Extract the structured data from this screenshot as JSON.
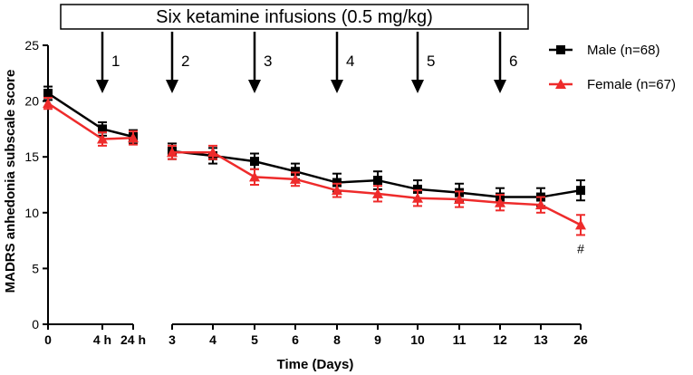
{
  "chart_data": {
    "type": "line",
    "title": "Six ketamine infusions (0.5 mg/kg)",
    "xlabel": "Time (Days)",
    "ylabel": "MADRS anhedonia subscale score",
    "ylim": [
      0,
      25
    ],
    "yticks": [
      0,
      5,
      10,
      15,
      20,
      25
    ],
    "x_tick_labels": [
      "0",
      "4 h",
      "24 h",
      "3",
      "4",
      "5",
      "6",
      "8",
      "9",
      "10",
      "11",
      "12",
      "13",
      "26"
    ],
    "infusions": [
      {
        "label": "1",
        "tick_index": 1
      },
      {
        "label": "2",
        "tick_index": 3
      },
      {
        "label": "3",
        "tick_index": 5
      },
      {
        "label": "4",
        "tick_index": 7
      },
      {
        "label": "5",
        "tick_index": 9
      },
      {
        "label": "6",
        "tick_index": 11
      }
    ],
    "series": [
      {
        "name": "Male (n=68)",
        "color": "#000000",
        "marker": "square",
        "values": [
          20.7,
          17.5,
          16.8,
          15.5,
          15.1,
          14.6,
          13.7,
          12.7,
          12.9,
          12.1,
          11.8,
          11.4,
          11.4,
          12.0
        ],
        "errors": [
          0.6,
          0.6,
          0.6,
          0.7,
          0.7,
          0.7,
          0.7,
          0.8,
          0.8,
          0.8,
          0.8,
          0.8,
          0.8,
          0.9
        ]
      },
      {
        "name": "Female (n=67)",
        "color": "#ee2b2b",
        "marker": "triangle",
        "values": [
          19.8,
          16.6,
          16.7,
          15.4,
          15.4,
          13.2,
          13.0,
          12.0,
          11.7,
          11.3,
          11.2,
          10.9,
          10.7,
          8.9
        ],
        "errors": [
          0.5,
          0.6,
          0.6,
          0.6,
          0.6,
          0.7,
          0.6,
          0.6,
          0.7,
          0.7,
          0.7,
          0.7,
          0.7,
          0.9
        ]
      }
    ],
    "annotations": [
      {
        "text": "#",
        "series": 1,
        "point_index": 13
      }
    ],
    "legend_position": "top-right",
    "grid": false
  }
}
